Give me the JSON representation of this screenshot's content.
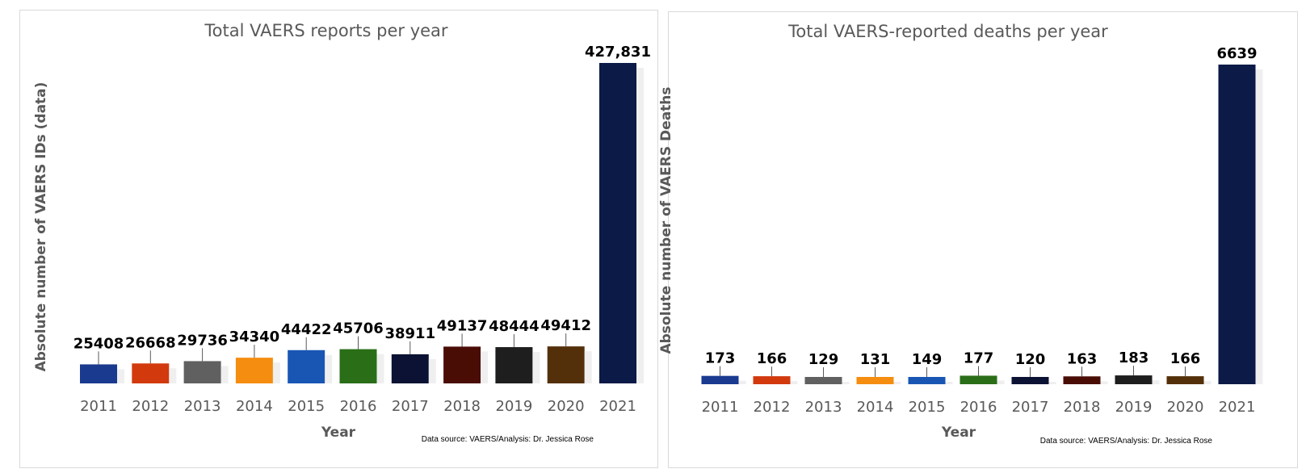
{
  "chart_data": [
    {
      "type": "bar",
      "title": "Total VAERS reports per year",
      "xlabel": "Year",
      "ylabel": "Absolute number of VAERS IDs (data)",
      "categories": [
        "2011",
        "2012",
        "2013",
        "2014",
        "2015",
        "2016",
        "2017",
        "2018",
        "2019",
        "2020",
        "2021"
      ],
      "values": [
        25408,
        26668,
        29736,
        34340,
        44422,
        45706,
        38911,
        49137,
        48444,
        49412,
        427831
      ],
      "value_labels": [
        "25408",
        "26668",
        "29736",
        "34340",
        "44422",
        "45706",
        "38911",
        "49137",
        "48444",
        "49412",
        "427,831"
      ],
      "ylim": [
        0,
        440000
      ],
      "grid": false,
      "legend": "none",
      "note": "Data source: VAERS/Analysis: Dr. Jessica Rose"
    },
    {
      "type": "bar",
      "title": "Total VAERS-reported deaths per year",
      "xlabel": "Year",
      "ylabel": "Absolute number of VAERS Deaths",
      "categories": [
        "2011",
        "2012",
        "2013",
        "2014",
        "2015",
        "2016",
        "2017",
        "2018",
        "2019",
        "2020",
        "2021"
      ],
      "values": [
        173,
        166,
        129,
        131,
        149,
        177,
        120,
        163,
        183,
        166,
        6639
      ],
      "value_labels": [
        "173",
        "166",
        "129",
        "131",
        "149",
        "177",
        "120",
        "163",
        "183",
        "166",
        "6639"
      ],
      "ylim": [
        0,
        6800
      ],
      "grid": false,
      "legend": "none",
      "note": "Data source: VAERS/Analysis: Dr. Jessica Rose"
    }
  ],
  "bar_colors": [
    "#1a3a8f",
    "#d23a0e",
    "#606060",
    "#f58d10",
    "#1956b4",
    "#2a6e18",
    "#0b1233",
    "#4a0d06",
    "#1e1e1e",
    "#54300a",
    "#0b1a46"
  ]
}
